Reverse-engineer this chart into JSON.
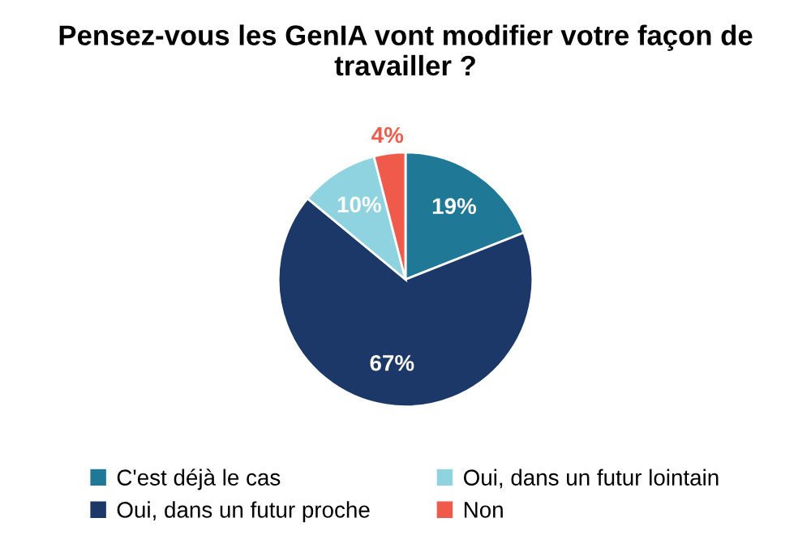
{
  "chart_data": {
    "type": "pie",
    "title": "Pensez-vous les GenIA vont modifier votre façon de travailler ?",
    "categories": [
      "C'est déjà le cas",
      "Oui, dans un futur proche",
      "Oui, dans un futur lointain",
      "Non"
    ],
    "values": [
      19,
      67,
      10,
      4
    ],
    "colors": [
      "#1e7896",
      "#1c3868",
      "#8ed3df",
      "#ef5a4b"
    ],
    "value_labels": [
      "19%",
      "67%",
      "10%",
      "4%"
    ],
    "legend": "bottom"
  }
}
